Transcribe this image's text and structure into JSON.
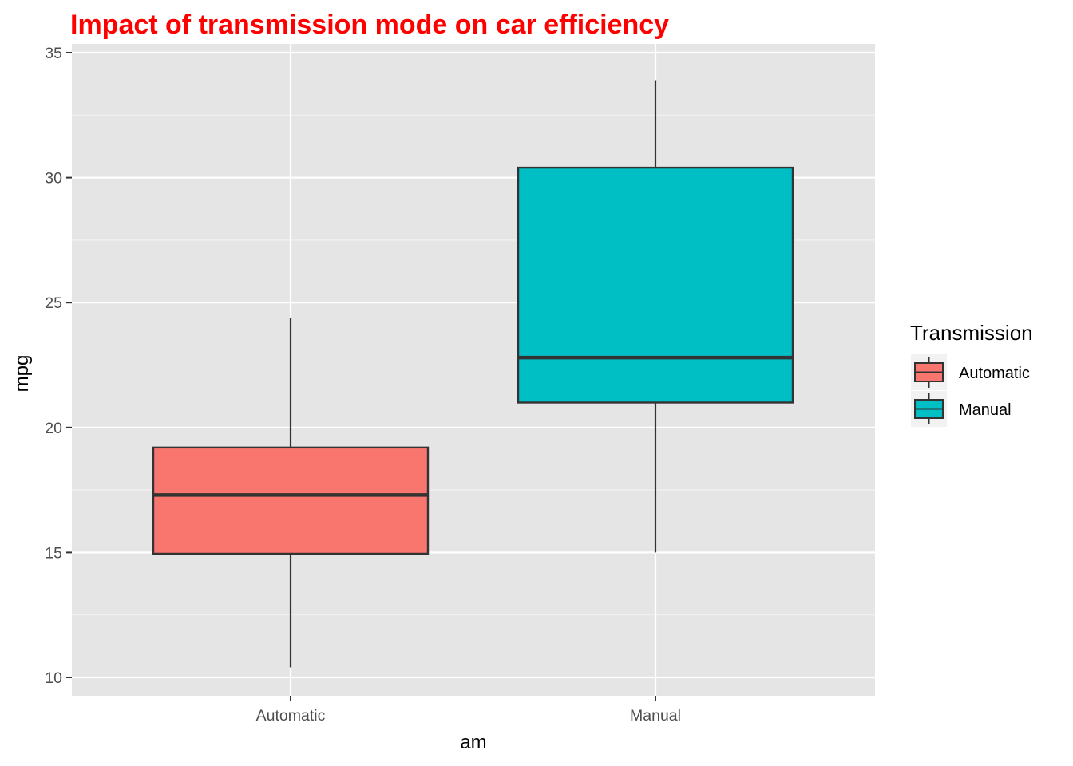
{
  "chart_data": {
    "type": "boxplot",
    "title": "Impact of transmission mode on car efficiency",
    "title_color": "#ff0000",
    "xlabel": "am",
    "ylabel": "mpg",
    "ylim": [
      9.25,
      35.0
    ],
    "yticks": [
      10,
      15,
      20,
      25,
      30,
      35
    ],
    "grid": true,
    "panel_background": "#e5e5e5",
    "categories": [
      "Automatic",
      "Manual"
    ],
    "boxes": [
      {
        "category": "Automatic",
        "min": 10.4,
        "q1": 14.95,
        "median": 17.3,
        "q3": 19.2,
        "max": 24.4,
        "fill": "#f8766d"
      },
      {
        "category": "Manual",
        "min": 15.0,
        "q1": 21.0,
        "median": 22.8,
        "q3": 30.4,
        "max": 33.9,
        "fill": "#00bfc4"
      }
    ],
    "legend": {
      "title": "Transmission",
      "position": "right",
      "entries": [
        {
          "label": "Automatic",
          "fill": "#f8766d"
        },
        {
          "label": "Manual",
          "fill": "#00bfc4"
        }
      ]
    }
  }
}
